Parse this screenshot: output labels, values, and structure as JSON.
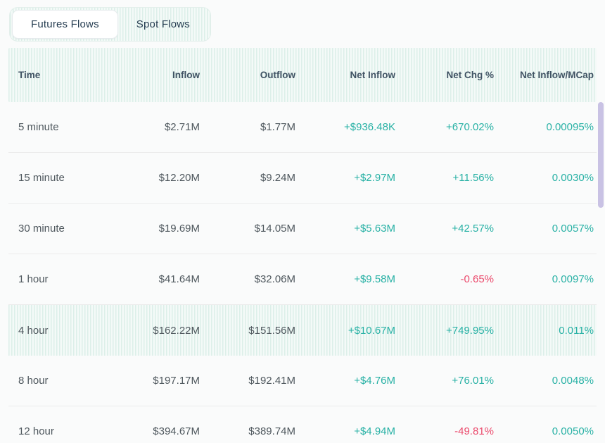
{
  "tabs": [
    {
      "label": "Futures Flows",
      "active": true
    },
    {
      "label": "Spot Flows",
      "active": false
    }
  ],
  "table": {
    "columns": [
      "Time",
      "Inflow",
      "Outflow",
      "Net Inflow",
      "Net Chg %",
      "Net Inflow/MCap"
    ],
    "rows": [
      {
        "time": "5 minute",
        "inflow": "$2.71M",
        "outflow": "$1.77M",
        "net_inflow": "+$936.48K",
        "net_chg": "+670.02%",
        "net_inflow_mcap": "0.00095%",
        "highlighted": false
      },
      {
        "time": "15 minute",
        "inflow": "$12.20M",
        "outflow": "$9.24M",
        "net_inflow": "+$2.97M",
        "net_chg": "+11.56%",
        "net_inflow_mcap": "0.0030%",
        "highlighted": false
      },
      {
        "time": "30 minute",
        "inflow": "$19.69M",
        "outflow": "$14.05M",
        "net_inflow": "+$5.63M",
        "net_chg": "+42.57%",
        "net_inflow_mcap": "0.0057%",
        "highlighted": false
      },
      {
        "time": "1 hour",
        "inflow": "$41.64M",
        "outflow": "$32.06M",
        "net_inflow": "+$9.58M",
        "net_chg": "-0.65%",
        "net_inflow_mcap": "0.0097%",
        "highlighted": false
      },
      {
        "time": "4 hour",
        "inflow": "$162.22M",
        "outflow": "$151.56M",
        "net_inflow": "+$10.67M",
        "net_chg": "+749.95%",
        "net_inflow_mcap": "0.011%",
        "highlighted": true
      },
      {
        "time": "8 hour",
        "inflow": "$197.17M",
        "outflow": "$192.41M",
        "net_inflow": "+$4.76M",
        "net_chg": "+76.01%",
        "net_inflow_mcap": "0.0048%",
        "highlighted": false
      },
      {
        "time": "12 hour",
        "inflow": "$394.67M",
        "outflow": "$389.74M",
        "net_inflow": "+$4.94M",
        "net_chg": "-49.81%",
        "net_inflow_mcap": "0.0050%",
        "highlighted": false
      }
    ]
  },
  "colors": {
    "positive": "#28b1a5",
    "negative": "#eb4b6d",
    "header_text": "#3f5263",
    "body_text": "#4f585e",
    "tab_text": "#263d51",
    "stripe_dark": "#dcefe9",
    "stripe_light": "#f4faf8",
    "scrollbar_thumb": "#c9c2e4"
  }
}
